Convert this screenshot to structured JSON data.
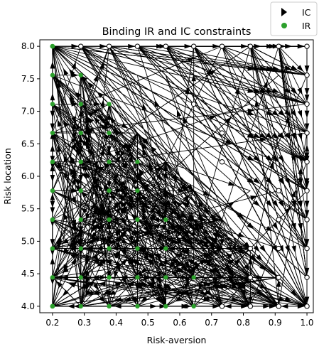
{
  "chart_data": {
    "type": "scatter",
    "title": "Binding IR and IC constraints",
    "xlabel": "Risk-aversion",
    "ylabel": "Risk location",
    "xlim": [
      0.16,
      1.02
    ],
    "ylim": [
      3.9,
      8.1
    ],
    "x_ticks": [
      "0.2",
      "0.3",
      "0.4",
      "0.5",
      "0.6",
      "0.7",
      "0.8",
      "0.9",
      "1.0"
    ],
    "y_ticks": [
      "4.0",
      "4.5",
      "5.0",
      "5.5",
      "6.0",
      "6.5",
      "7.0",
      "7.5",
      "8.0"
    ],
    "grid": false,
    "legend_position": "top-right-outside",
    "legend": [
      {
        "name": "IC",
        "marker": "triangle-right",
        "color": "#000000"
      },
      {
        "name": "IR",
        "marker": "circle",
        "color": "#2ca02c"
      }
    ],
    "grid_x": [
      0.2,
      0.289,
      0.378,
      0.467,
      0.556,
      0.644,
      0.733,
      0.822,
      0.911,
      1.0
    ],
    "grid_y": [
      4.0,
      4.444,
      4.889,
      5.333,
      5.778,
      6.222,
      6.667,
      7.111,
      7.556,
      8.0
    ],
    "ir_points": [
      [
        0.2,
        4.0
      ],
      [
        0.2,
        4.444
      ],
      [
        0.2,
        4.889
      ],
      [
        0.2,
        5.333
      ],
      [
        0.2,
        5.778
      ],
      [
        0.2,
        6.222
      ],
      [
        0.2,
        6.667
      ],
      [
        0.2,
        7.111
      ],
      [
        0.2,
        7.556
      ],
      [
        0.2,
        8.0
      ],
      [
        0.289,
        4.0
      ],
      [
        0.289,
        4.444
      ],
      [
        0.289,
        4.889
      ],
      [
        0.289,
        5.333
      ],
      [
        0.289,
        5.778
      ],
      [
        0.289,
        6.222
      ],
      [
        0.289,
        6.667
      ],
      [
        0.289,
        7.111
      ],
      [
        0.289,
        7.556
      ],
      [
        0.378,
        4.0
      ],
      [
        0.378,
        4.444
      ],
      [
        0.378,
        4.889
      ],
      [
        0.378,
        5.333
      ],
      [
        0.378,
        5.778
      ],
      [
        0.378,
        6.222
      ],
      [
        0.378,
        6.667
      ],
      [
        0.378,
        7.111
      ],
      [
        0.467,
        4.0
      ],
      [
        0.467,
        4.444
      ],
      [
        0.467,
        4.889
      ],
      [
        0.467,
        5.333
      ],
      [
        0.467,
        5.778
      ],
      [
        0.467,
        6.222
      ],
      [
        0.556,
        4.0
      ],
      [
        0.556,
        4.444
      ],
      [
        0.556,
        4.889
      ],
      [
        0.556,
        5.333
      ],
      [
        0.644,
        4.0
      ],
      [
        0.644,
        4.444
      ]
    ],
    "open_nodes": [
      [
        0.289,
        8.0
      ],
      [
        0.378,
        8.0
      ],
      [
        0.467,
        8.0
      ],
      [
        0.556,
        8.0
      ],
      [
        0.644,
        8.0
      ],
      [
        0.733,
        8.0
      ],
      [
        0.822,
        8.0
      ],
      [
        0.911,
        8.0
      ],
      [
        1.0,
        8.0
      ],
      [
        1.0,
        7.556
      ],
      [
        1.0,
        7.111
      ],
      [
        1.0,
        6.667
      ],
      [
        1.0,
        6.222
      ],
      [
        1.0,
        5.778
      ],
      [
        1.0,
        5.333
      ],
      [
        1.0,
        4.889
      ],
      [
        1.0,
        4.444
      ],
      [
        1.0,
        4.0
      ],
      [
        0.911,
        4.0
      ],
      [
        0.822,
        4.0
      ],
      [
        0.733,
        4.0
      ],
      [
        0.911,
        4.444
      ],
      [
        0.911,
        4.889
      ],
      [
        0.911,
        5.333
      ],
      [
        0.911,
        5.778
      ],
      [
        0.822,
        4.444
      ],
      [
        0.822,
        4.889
      ],
      [
        0.733,
        6.222
      ],
      [
        0.733,
        6.667
      ],
      [
        0.644,
        7.111
      ]
    ]
  }
}
